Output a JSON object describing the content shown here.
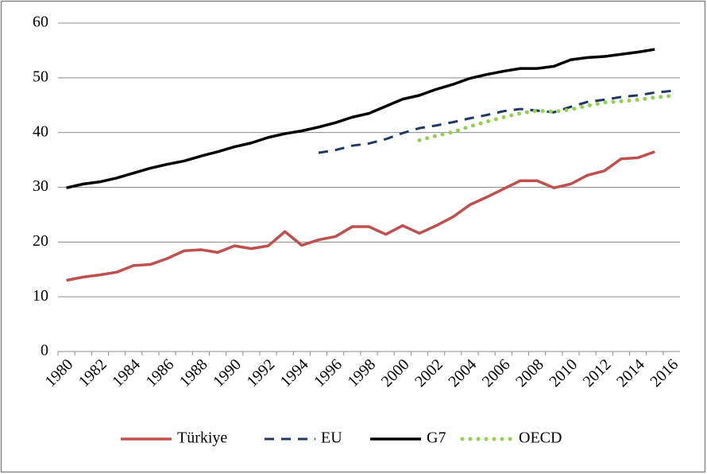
{
  "chart_data": {
    "type": "line",
    "categories": [
      "1980",
      null,
      "1982",
      null,
      "1984",
      null,
      "1986",
      null,
      "1988",
      null,
      "1990",
      null,
      "1992",
      null,
      "1994",
      null,
      "1996",
      null,
      "1998",
      null,
      "2000",
      null,
      "2002",
      null,
      "2004",
      null,
      "2006",
      null,
      "2008",
      null,
      "2010",
      null,
      "2012",
      null,
      "2014",
      null,
      "2016"
    ],
    "series": [
      {
        "name": "Türkiye",
        "color": "#c0504d",
        "style": "solid",
        "values": [
          13,
          13.6,
          14,
          14.5,
          15.7,
          15.9,
          17,
          18.4,
          18.6,
          18.1,
          19.3,
          18.8,
          19.3,
          21.9,
          19.4,
          20.4,
          21,
          22.8,
          22.8,
          21.4,
          23,
          21.6,
          23,
          24.6,
          26.8,
          28.2,
          29.7,
          31.2,
          31.2,
          29.9,
          30.6,
          32.2,
          33,
          35.2,
          35.4,
          36.5,
          null
        ]
      },
      {
        "name": "EU",
        "color": "#1f3864",
        "style": "dashed",
        "values": [
          null,
          null,
          null,
          null,
          null,
          null,
          null,
          null,
          null,
          null,
          null,
          null,
          null,
          null,
          null,
          36.3,
          36.8,
          37.6,
          38,
          38.8,
          39.9,
          40.8,
          41.3,
          41.9,
          42.6,
          43.2,
          43.9,
          44.3,
          44,
          43.7,
          44.7,
          45.6,
          46,
          46.5,
          46.8,
          47.3,
          47.6
        ]
      },
      {
        "name": "G7",
        "color": "#000000",
        "style": "solid",
        "values": [
          29.9,
          30.6,
          31,
          31.7,
          32.6,
          33.5,
          34.2,
          34.8,
          35.7,
          36.5,
          37.4,
          38.1,
          39.1,
          39.8,
          40.3,
          41,
          41.8,
          42.8,
          43.5,
          44.8,
          46.1,
          46.8,
          47.9,
          48.8,
          49.9,
          50.6,
          51.2,
          51.7,
          51.7,
          52.1,
          53.3,
          53.7,
          53.9,
          54.3,
          54.7,
          55.2,
          null
        ]
      },
      {
        "name": "OECD",
        "color": "#92d050",
        "style": "dotted",
        "values": [
          null,
          null,
          null,
          null,
          null,
          null,
          null,
          null,
          null,
          null,
          null,
          null,
          null,
          null,
          null,
          null,
          null,
          null,
          null,
          null,
          null,
          38.6,
          39.4,
          40.1,
          41.1,
          42,
          42.8,
          43.5,
          44,
          43.8,
          44.2,
          44.9,
          45.5,
          45.7,
          46,
          46.4,
          46.7
        ]
      }
    ],
    "ylim": [
      0,
      60
    ],
    "yticks": [
      0,
      10,
      20,
      30,
      40,
      50,
      60
    ],
    "grid": true,
    "legend": "bottom"
  }
}
